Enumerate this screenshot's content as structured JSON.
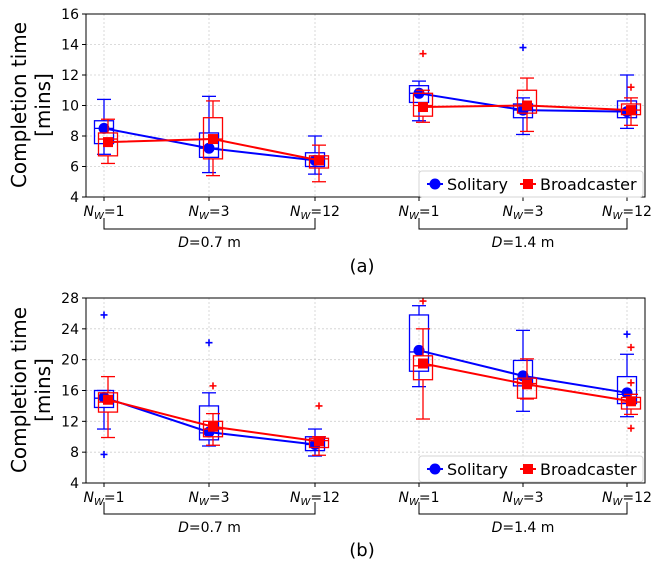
{
  "colors": {
    "solitary": "#0000ff",
    "broadcaster": "#ff0000"
  },
  "chart_data": [
    {
      "type": "box",
      "caption": "(a)",
      "ylabel_line1": "Completion time",
      "ylabel_line2": "[mins]",
      "ylim": [
        4,
        16
      ],
      "yticks": [
        4,
        6,
        8,
        10,
        12,
        14,
        16
      ],
      "grid": true,
      "legend_position": "lower-right",
      "groups": [
        {
          "label": "D = 0.7 m",
          "prefix": "D",
          "value": "=0.7 m"
        },
        {
          "label": "D = 1.4 m",
          "prefix": "D",
          "value": "=1.4 m"
        }
      ],
      "categories": [
        {
          "base": "N",
          "sub": "W",
          "val": "=1"
        },
        {
          "base": "N",
          "sub": "W",
          "val": "=3"
        },
        {
          "base": "N",
          "sub": "W",
          "val": "=12"
        },
        {
          "base": "N",
          "sub": "W",
          "val": "=1"
        },
        {
          "base": "N",
          "sub": "W",
          "val": "=3"
        },
        {
          "base": "N",
          "sub": "W",
          "val": "=12"
        }
      ],
      "series": [
        {
          "name": "Solitary",
          "color_key": "solitary",
          "marker": "circle",
          "means": [
            8.5,
            7.2,
            6.4,
            10.8,
            9.7,
            9.6
          ],
          "boxes": [
            {
              "whislo": 6.8,
              "q1": 7.5,
              "med": 8.5,
              "q3": 9.0,
              "whishi": 10.4,
              "fliers": []
            },
            {
              "whislo": 5.6,
              "q1": 6.6,
              "med": 7.2,
              "q3": 8.2,
              "whishi": 10.6,
              "fliers": []
            },
            {
              "whislo": 5.5,
              "q1": 6.0,
              "med": 6.5,
              "q3": 6.9,
              "whishi": 8.0,
              "fliers": []
            },
            {
              "whislo": 9.0,
              "q1": 10.2,
              "med": 10.8,
              "q3": 11.3,
              "whishi": 11.6,
              "fliers": []
            },
            {
              "whislo": 8.1,
              "q1": 9.2,
              "med": 9.7,
              "q3": 10.1,
              "whishi": 10.5,
              "fliers": [
                13.8
              ]
            },
            {
              "whislo": 8.5,
              "q1": 9.2,
              "med": 9.6,
              "q3": 10.3,
              "whishi": 12.0,
              "fliers": []
            }
          ]
        },
        {
          "name": "Broadcaster",
          "color_key": "broadcaster",
          "marker": "square",
          "means": [
            7.6,
            7.8,
            6.4,
            9.9,
            10.0,
            9.7
          ],
          "boxes": [
            {
              "whislo": 6.2,
              "q1": 6.7,
              "med": 7.8,
              "q3": 8.2,
              "whishi": 9.1,
              "fliers": []
            },
            {
              "whislo": 5.4,
              "q1": 6.5,
              "med": 7.8,
              "q3": 9.2,
              "whishi": 10.3,
              "fliers": []
            },
            {
              "whislo": 5.0,
              "q1": 5.9,
              "med": 6.5,
              "q3": 6.7,
              "whishi": 7.4,
              "fliers": []
            },
            {
              "whislo": 8.9,
              "q1": 9.3,
              "med": 10.0,
              "q3": 10.8,
              "whishi": 11.0,
              "fliers": [
                13.4
              ]
            },
            {
              "whislo": 8.3,
              "q1": 9.5,
              "med": 10.0,
              "q3": 11.0,
              "whishi": 11.8,
              "fliers": []
            },
            {
              "whislo": 8.7,
              "q1": 9.4,
              "med": 9.7,
              "q3": 10.1,
              "whishi": 10.5,
              "fliers": [
                11.2
              ]
            }
          ]
        }
      ]
    },
    {
      "type": "box",
      "caption": "(b)",
      "ylabel_line1": "Completion time",
      "ylabel_line2": "[mins]",
      "ylim": [
        4,
        28
      ],
      "yticks": [
        4,
        8,
        12,
        16,
        20,
        24,
        28
      ],
      "grid": true,
      "legend_position": "lower-right",
      "groups": [
        {
          "label": "D = 0.7 m",
          "prefix": "D",
          "value": "=0.7 m"
        },
        {
          "label": "D = 1.4 m",
          "prefix": "D",
          "value": "=1.4 m"
        }
      ],
      "categories": [
        {
          "base": "N",
          "sub": "W",
          "val": "=1"
        },
        {
          "base": "N",
          "sub": "W",
          "val": "=3"
        },
        {
          "base": "N",
          "sub": "W",
          "val": "=12"
        },
        {
          "base": "N",
          "sub": "W",
          "val": "=1"
        },
        {
          "base": "N",
          "sub": "W",
          "val": "=3"
        },
        {
          "base": "N",
          "sub": "W",
          "val": "=12"
        }
      ],
      "series": [
        {
          "name": "Solitary",
          "color_key": "solitary",
          "marker": "circle",
          "means": [
            15.1,
            10.6,
            9.0,
            21.2,
            17.9,
            15.7
          ],
          "boxes": [
            {
              "whislo": 11.0,
              "q1": 13.8,
              "med": 15.0,
              "q3": 16.0,
              "whishi": 16.0,
              "fliers": [
                25.8,
                7.7
              ]
            },
            {
              "whislo": 8.8,
              "q1": 9.6,
              "med": 10.5,
              "q3": 14.0,
              "whishi": 15.7,
              "fliers": [
                22.2
              ]
            },
            {
              "whislo": 7.5,
              "q1": 8.2,
              "med": 9.0,
              "q3": 10.0,
              "whishi": 11.0,
              "fliers": []
            },
            {
              "whislo": 16.5,
              "q1": 18.5,
              "med": 21.0,
              "q3": 25.8,
              "whishi": 27.0,
              "fliers": []
            },
            {
              "whislo": 13.3,
              "q1": 16.6,
              "med": 17.5,
              "q3": 19.9,
              "whishi": 23.8,
              "fliers": []
            },
            {
              "whislo": 12.6,
              "q1": 14.3,
              "med": 15.5,
              "q3": 17.8,
              "whishi": 20.7,
              "fliers": [
                23.3
              ]
            }
          ]
        },
        {
          "name": "Broadcaster",
          "color_key": "broadcaster",
          "marker": "square",
          "means": [
            14.8,
            11.3,
            9.4,
            19.5,
            16.8,
            14.6
          ],
          "boxes": [
            {
              "whislo": 9.9,
              "q1": 13.2,
              "med": 14.5,
              "q3": 15.7,
              "whishi": 17.8,
              "fliers": []
            },
            {
              "whislo": 8.9,
              "q1": 10.0,
              "med": 11.0,
              "q3": 12.0,
              "whishi": 13.0,
              "fliers": [
                16.6
              ]
            },
            {
              "whislo": 7.6,
              "q1": 8.6,
              "med": 9.5,
              "q3": 9.8,
              "whishi": 10.0,
              "fliers": [
                14.0
              ]
            },
            {
              "whislo": 12.3,
              "q1": 17.4,
              "med": 19.2,
              "q3": 20.5,
              "whishi": 24.0,
              "fliers": [
                27.6
              ]
            },
            {
              "whislo": 14.9,
              "q1": 15.0,
              "med": 16.9,
              "q3": 17.6,
              "whishi": 20.1,
              "fliers": []
            },
            {
              "whislo": 12.9,
              "q1": 13.6,
              "med": 14.5,
              "q3": 15.1,
              "whishi": 15.5,
              "fliers": [
                17.0,
                21.6,
                11.1
              ]
            }
          ]
        }
      ]
    }
  ]
}
